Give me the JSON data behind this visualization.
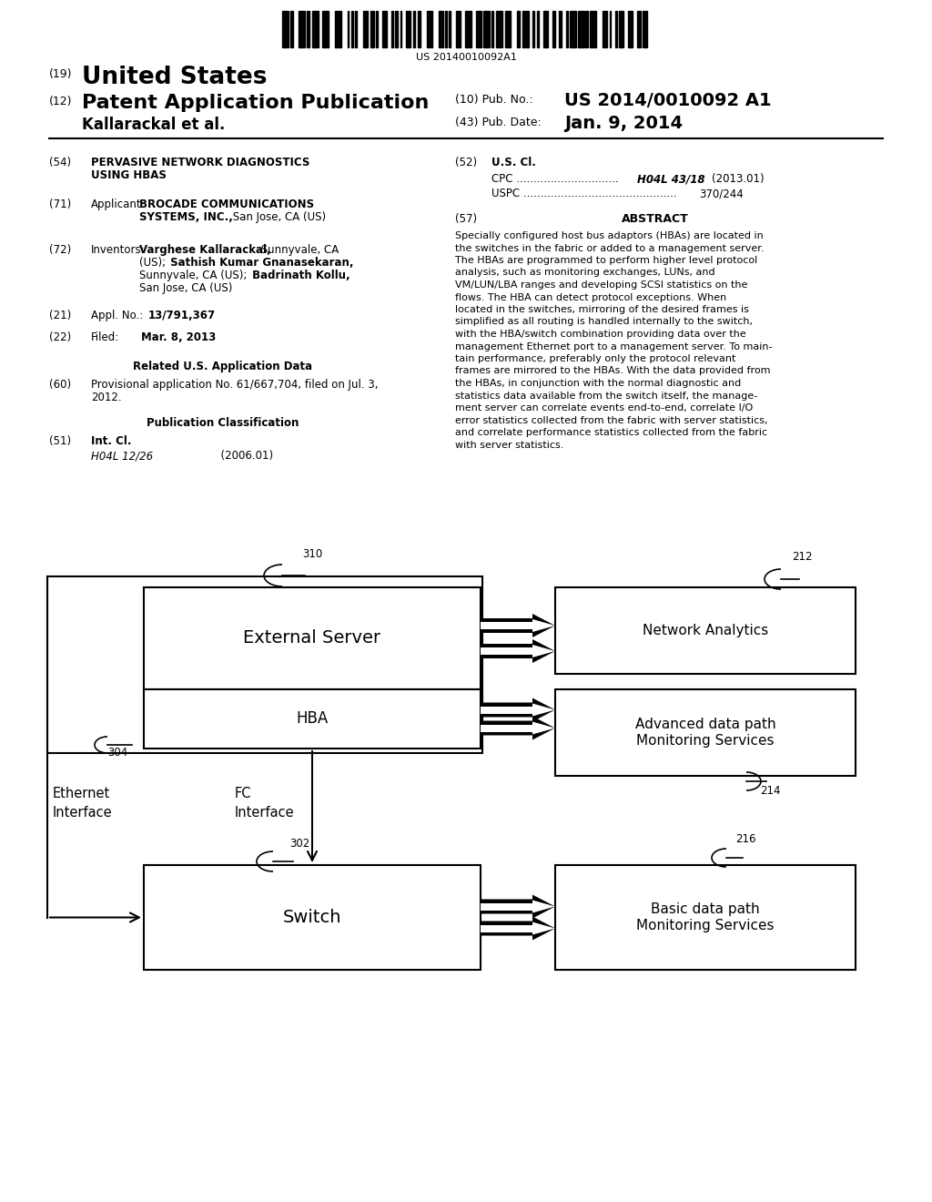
{
  "background_color": "#ffffff",
  "barcode_text": "US 20140010092A1",
  "header": {
    "number_19": "(19)",
    "united_states": "United States",
    "number_12": "(12)",
    "patent_app_pub": "Patent Application Publication",
    "inventor": "Kallarackal et al.",
    "pub_no_label": "(10) Pub. No.:",
    "pub_no_value": "US 2014/0010092 A1",
    "pub_date_label": "(43) Pub. Date:",
    "pub_date_value": "Jan. 9, 2014"
  },
  "diagram": {
    "label_310": "310",
    "label_304": "304",
    "label_302": "302",
    "label_212": "212",
    "label_214": "214",
    "label_216": "216",
    "text_ext_server": "External Server",
    "text_hba": "HBA",
    "text_switch": "Switch",
    "text_net_analytics": "Network Analytics",
    "text_adv_mon": "Advanced data path\nMonitoring Services",
    "text_basic_mon": "Basic data path\nMonitoring Services",
    "text_ethernet": "Ethernet\nInterface",
    "text_fc": "FC\nInterface"
  }
}
